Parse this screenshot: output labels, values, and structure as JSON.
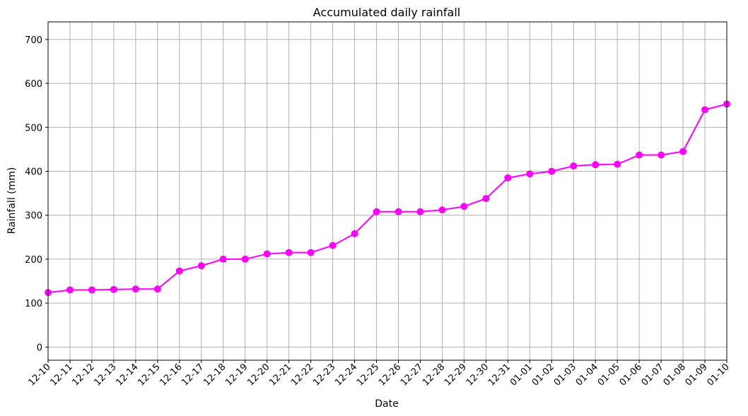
{
  "chart_data": {
    "type": "line",
    "title": "Accumulated daily rainfall",
    "xlabel": "Date",
    "ylabel": "Rainfall (mm)",
    "ylim": [
      -30,
      740
    ],
    "yticks": [
      0,
      100,
      200,
      300,
      400,
      500,
      600,
      700
    ],
    "grid": true,
    "categories": [
      "12-10",
      "12-11",
      "12-12",
      "12-13",
      "12-14",
      "12-15",
      "12-16",
      "12-17",
      "12-18",
      "12-19",
      "12-20",
      "12-21",
      "12-22",
      "12-23",
      "12-24",
      "12-25",
      "12-26",
      "12-27",
      "12-28",
      "12-29",
      "12-30",
      "12-31",
      "01-01",
      "01-02",
      "01-03",
      "01-04",
      "01-05",
      "01-06",
      "01-07",
      "01-08",
      "01-09",
      "01-10"
    ],
    "series": [
      {
        "color": "#ff00ff",
        "marker": "circle",
        "values": [
          124,
          130,
          130,
          131,
          132,
          132,
          173,
          185,
          200,
          200,
          212,
          215,
          215,
          231,
          258,
          308,
          308,
          308,
          312,
          320,
          338,
          385,
          394,
          400,
          412,
          415,
          416,
          437,
          437,
          445,
          540,
          553
        ]
      }
    ]
  }
}
